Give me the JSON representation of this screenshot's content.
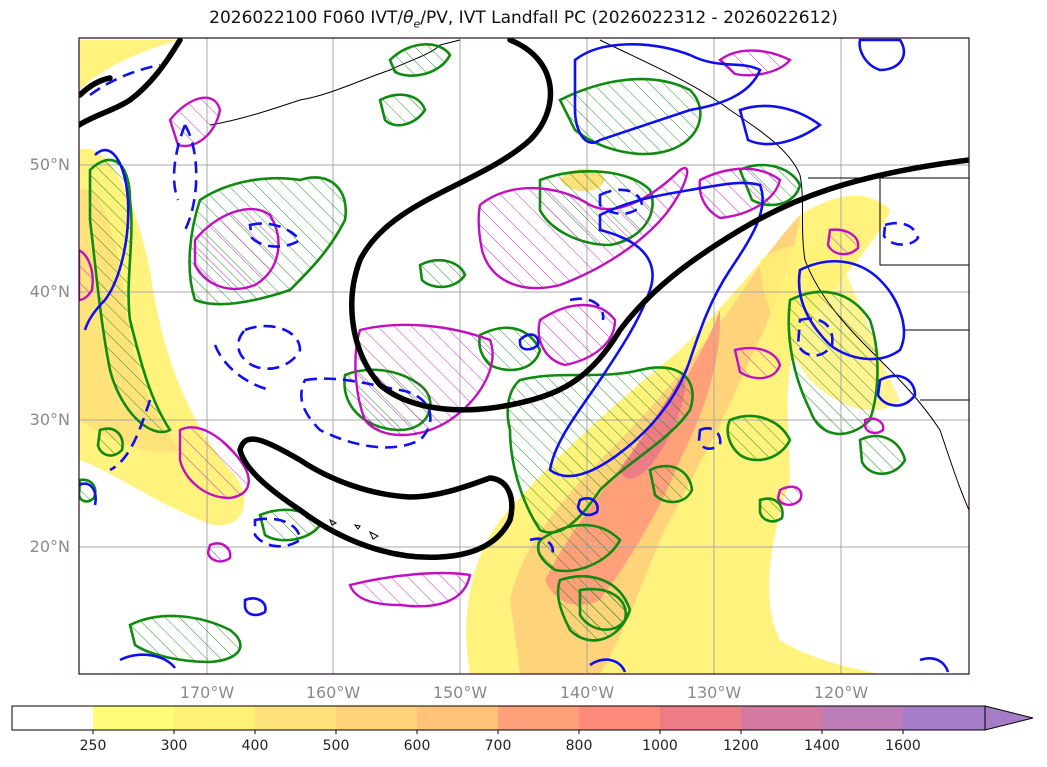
{
  "title": "2026022100 F060 IVT/θe/PV, IVT Landfall PC (2026022312 - 2026022612)",
  "title_parts": {
    "prefix": "2026022100 F060 IVT/",
    "theta": "θ",
    "theta_sub": "e",
    "suffix": "/PV, IVT Landfall PC (2026022312 - 2026022612)"
  },
  "latitude_labels": [
    "50°N",
    "40°N",
    "30°N",
    "20°N"
  ],
  "longitude_labels": [
    "170°W",
    "160°W",
    "150°W",
    "140°W",
    "130°W",
    "120°W"
  ],
  "colorbar": {
    "ticks": [
      "250",
      "300",
      "400",
      "500",
      "600",
      "700",
      "800",
      "1000",
      "1200",
      "1400",
      "1600"
    ],
    "colors": [
      "#ffffff",
      "#fffe7a",
      "#fff176",
      "#ffe27a",
      "#ffd37a",
      "#ffc477",
      "#ffa07a",
      "#ff8a7a",
      "#ee7c85",
      "#d47aa0",
      "#bb7cb8",
      "#a57dc7"
    ]
  },
  "contour_colors": {
    "ivt_black": "#000000",
    "pv_green": "#108a10",
    "theta_blue": "#1010ee",
    "magenta": "#c010c0"
  }
}
